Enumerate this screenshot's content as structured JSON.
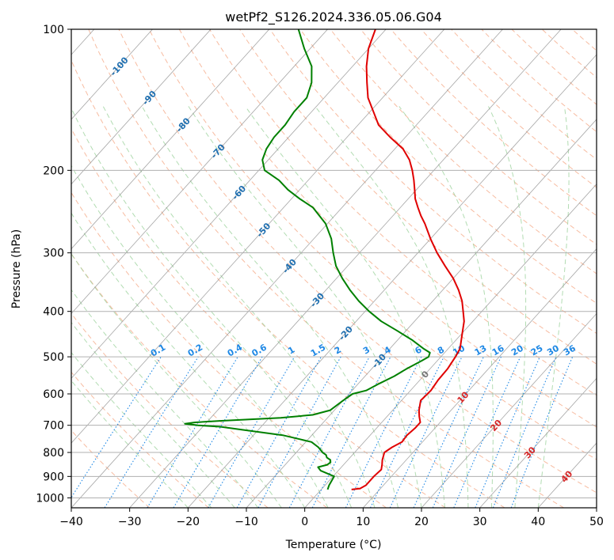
{
  "chart_data": {
    "type": "line",
    "title": "wetPf2_S126.2024.336.05.06.G04",
    "xlabel": "Temperature (°C)",
    "ylabel": "Pressure (hPa)",
    "xlim": [
      -40,
      50
    ],
    "ylim": [
      1050,
      100
    ],
    "y_scale": "log",
    "grid": true,
    "x_ticks": [
      -40,
      -30,
      -20,
      -10,
      0,
      10,
      20,
      30,
      40,
      50
    ],
    "y_ticks": [
      100,
      200,
      300,
      400,
      500,
      600,
      700,
      800,
      900,
      1000
    ],
    "isotherm_labels": [
      "-100",
      "-90",
      "-80",
      "-70",
      "-60",
      "-50",
      "-40",
      "-30",
      "-20",
      "-10",
      "0",
      "10",
      "20",
      "30",
      "40"
    ],
    "mixing_ratio_labels": [
      "0.1",
      "0.2",
      "0.4",
      "0.6",
      "1",
      "1.5",
      "2",
      "3",
      "4",
      "6",
      "8",
      "10",
      "13",
      "16",
      "20",
      "25",
      "30",
      "36"
    ],
    "colors": {
      "temperature": "#e00000",
      "dewpoint": "#008000",
      "dry_adiabat": "#f4a582",
      "moist_adiabat": "#9fd39f",
      "mixing_ratio": "#1e88e5",
      "isotherm": "#888888",
      "isotherm_label": "#1f6fb0",
      "isotherm_label_warm": "#d62728"
    },
    "series": [
      {
        "key": "temperature",
        "x_pressure": [
          960,
          955,
          940,
          900,
          870,
          850,
          830,
          800,
          780,
          760,
          735,
          710,
          690,
          670,
          650,
          620,
          590,
          560,
          530,
          500,
          480,
          450,
          420,
          400,
          380,
          360,
          340,
          320,
          300,
          280,
          260,
          250,
          240,
          230,
          220,
          210,
          200,
          190,
          180,
          170,
          160,
          150,
          140,
          130,
          120,
          110,
          100
        ],
        "values": [
          5.2,
          6.5,
          7.0,
          7.0,
          7.2,
          6.6,
          5.9,
          5.1,
          5.6,
          6.5,
          6.3,
          6.6,
          6.6,
          5.5,
          4.5,
          3.3,
          3.5,
          3.1,
          3.0,
          2.5,
          2.0,
          0.3,
          -1.5,
          -3.2,
          -5.0,
          -7.3,
          -10.0,
          -13.3,
          -16.7,
          -20.0,
          -23.3,
          -25.2,
          -27.0,
          -28.8,
          -30.3,
          -31.9,
          -33.7,
          -35.8,
          -38.6,
          -42.6,
          -46.5,
          -49.4,
          -52.5,
          -55.0,
          -57.6,
          -60.0,
          -61.8
        ]
      },
      {
        "key": "dewpoint",
        "x_pressure": [
          960,
          955,
          940,
          900,
          875,
          860,
          850,
          840,
          830,
          820,
          810,
          800,
          780,
          760,
          735,
          715,
          705,
          700,
          695,
          690,
          685,
          675,
          665,
          650,
          620,
          600,
          590,
          570,
          550,
          530,
          510,
          500,
          490,
          480,
          460,
          440,
          420,
          400,
          380,
          360,
          340,
          320,
          300,
          280,
          260,
          240,
          230,
          220,
          210,
          200,
          190,
          180,
          170,
          160,
          150,
          140,
          130,
          120,
          110,
          100
        ],
        "values": [
          1.1,
          1.0,
          0.7,
          0.2,
          -3.0,
          -4.0,
          -2.8,
          -2.6,
          -3.0,
          -4.0,
          -4.5,
          -5.5,
          -7.0,
          -9.0,
          -15.0,
          -23.0,
          -27.0,
          -31.0,
          -33.5,
          -32.0,
          -28.0,
          -18.0,
          -13.0,
          -10.7,
          -10.0,
          -9.4,
          -7.6,
          -6.4,
          -5.0,
          -4.0,
          -2.7,
          -2.1,
          -2.5,
          -4.3,
          -7.6,
          -11.5,
          -15.7,
          -19.3,
          -22.7,
          -25.9,
          -29.0,
          -32.0,
          -34.5,
          -37.0,
          -40.3,
          -45.0,
          -48.6,
          -52.0,
          -55.0,
          -59.0,
          -61.0,
          -62.0,
          -62.5,
          -62.5,
          -63.0,
          -63.0,
          -64.5,
          -67.0,
          -71.0,
          -75.0
        ]
      }
    ]
  }
}
